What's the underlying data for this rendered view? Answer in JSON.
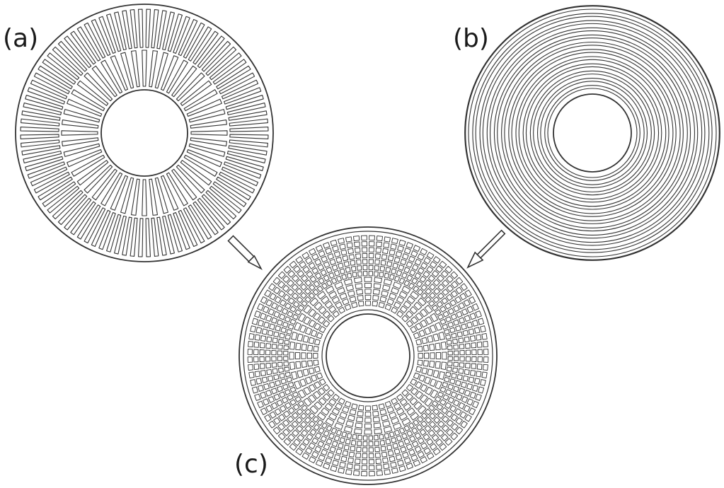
{
  "figure": {
    "panels": [
      {
        "id": "a",
        "label": "(a)",
        "pattern": "radial-slots"
      },
      {
        "id": "b",
        "label": "(b)",
        "pattern": "concentric-rings"
      },
      {
        "id": "c",
        "label": "(c)",
        "pattern": "radial-and-concentric-grid"
      }
    ],
    "arrows": [
      {
        "from": "a",
        "to": "c"
      },
      {
        "from": "b",
        "to": "c"
      }
    ],
    "colors": {
      "stroke": "#333333",
      "background": "#ffffff",
      "label": "#1a1a1a"
    }
  }
}
